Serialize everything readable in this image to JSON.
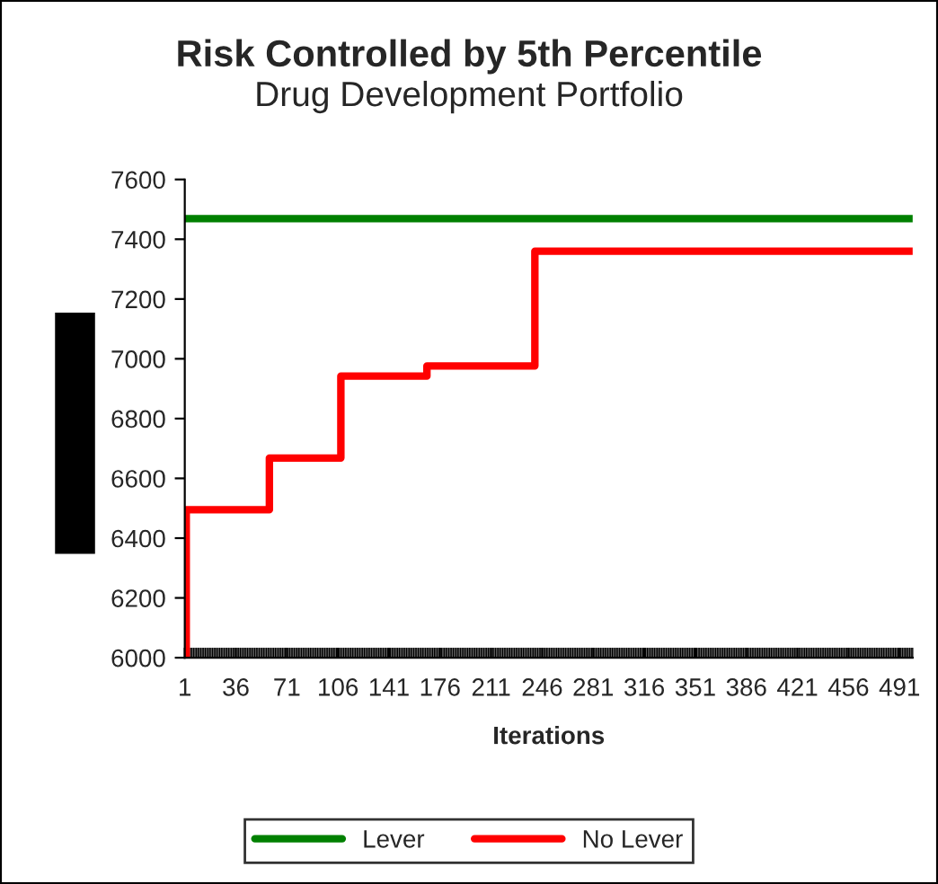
{
  "chart_data": {
    "type": "line",
    "title": "Risk Controlled by 5th Percentile",
    "subtitle": "Drug Development Portfolio",
    "xlabel": "Iterations",
    "series": [
      {
        "name": "Lever",
        "color": "#008000",
        "x": [
          1,
          500
        ],
        "values": [
          7469,
          7469
        ]
      },
      {
        "name": "No Lever",
        "color": "#ff0000",
        "type": "step",
        "x": [
          1,
          2,
          59,
          108,
          167,
          241,
          500
        ],
        "values": [
          6000,
          6495,
          6668,
          6942,
          6976,
          7360,
          7360
        ]
      }
    ],
    "xlim": [
      1,
      500
    ],
    "xticks": [
      1,
      36,
      71,
      106,
      141,
      176,
      211,
      246,
      281,
      316,
      351,
      386,
      421,
      456,
      491
    ],
    "ylim": [
      6000,
      7600
    ],
    "yticks": [
      6000,
      6200,
      6400,
      6600,
      6800,
      7000,
      7200,
      7400,
      7600
    ],
    "grid": false,
    "legend": "bottom",
    "marker": "none",
    "line_style": "solid"
  }
}
